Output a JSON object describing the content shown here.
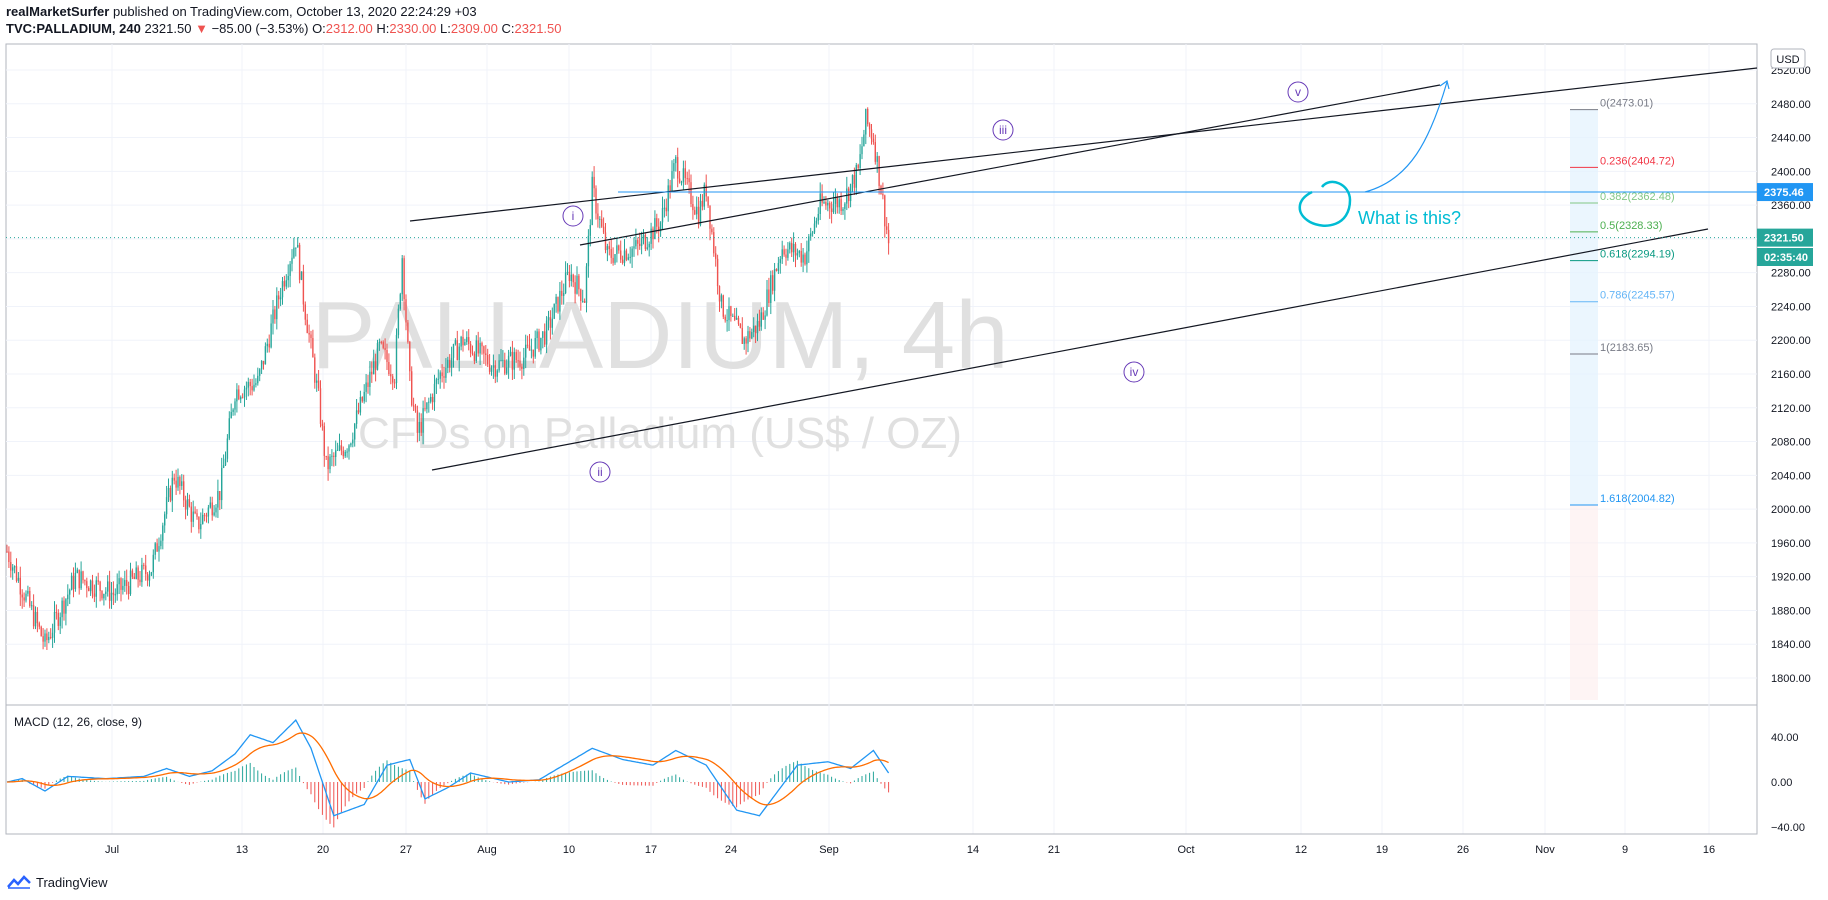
{
  "header": {
    "author": "realMarketSurfer",
    "published": "published on TradingView.com, October 13, 2020 22:24:29 +03",
    "symbol": "TVC:PALLADIUM, 240",
    "last": "2321.50",
    "arrow": "▼",
    "change": "−85.00 (−3.53%)",
    "o_label": "O:",
    "o_val": "2312.00",
    "h_label": "H:",
    "h_val": "2330.00",
    "l_label": "L:",
    "l_val": "2309.00",
    "c_label": "C:",
    "c_val": "2321.50"
  },
  "currency_button": "USD",
  "watermark": {
    "line1": "PALLADIUM, 4h",
    "line2": "CFDs on Palladium (US$ / OZ)"
  },
  "annotation": "What is this?",
  "wave_labels": [
    "i",
    "ii",
    "iii",
    "iv",
    "v"
  ],
  "macd": {
    "title": "MACD (12, 26, close, 9)"
  },
  "footer": {
    "brand": "TradingView"
  },
  "colors": {
    "up": "#26a69a",
    "down": "#ef5350",
    "macd_line": "#2196f3",
    "signal_line": "#ff6d00",
    "annotation": "#00bcd4",
    "wave": "#673ab7"
  },
  "chart_data": [
    {
      "type": "candlestick",
      "ylim": [
        1760,
        2530
      ],
      "y_ticks": [
        "1800.00",
        "1840.00",
        "1880.00",
        "1920.00",
        "1960.00",
        "2000.00",
        "2040.00",
        "2080.00",
        "2120.00",
        "2160.00",
        "2200.00",
        "2240.00",
        "2280.00",
        "2320.00",
        "2360.00",
        "2400.00",
        "2440.00",
        "2480.00",
        "2520.00"
      ],
      "x_ticks": [
        "Jul",
        "13",
        "20",
        "27",
        "Aug",
        "10",
        "17",
        "24",
        "Sep",
        "14",
        "21",
        "Oct",
        "12",
        "19",
        "26",
        "Nov",
        "9",
        "16"
      ],
      "price_labels": [
        {
          "text": "2375.46",
          "price": 2375.46,
          "color": "#2196f3"
        },
        {
          "text": "2321.50",
          "price": 2321.5,
          "color": "#26a69a"
        },
        {
          "text": "02:35:40",
          "price": 2298,
          "color": "#26a69a"
        }
      ],
      "fib_levels": [
        {
          "label": "0(2473.01)",
          "price": 2473.01,
          "color": "#787b86"
        },
        {
          "label": "0.236(2404.72)",
          "price": 2404.72,
          "color": "#f23645"
        },
        {
          "label": "0.382(2362.48)",
          "price": 2362.48,
          "color": "#81c784"
        },
        {
          "label": "0.5(2328.33)",
          "price": 2328.33,
          "color": "#4caf50"
        },
        {
          "label": "0.618(2294.19)",
          "price": 2294.19,
          "color": "#089981"
        },
        {
          "label": "0.786(2245.57)",
          "price": 2245.57,
          "color": "#64b5f6"
        },
        {
          "label": "1(2183.65)",
          "price": 2183.65,
          "color": "#787b86"
        },
        {
          "label": "1.618(2004.82)",
          "price": 2004.82,
          "color": "#2196f3"
        }
      ],
      "keypoints": [
        {
          "day": 0,
          "price": 1950
        },
        {
          "day": 5,
          "price": 1840
        },
        {
          "day": 9,
          "price": 1920
        },
        {
          "day": 14,
          "price": 1900
        },
        {
          "day": 19,
          "price": 1930
        },
        {
          "day": 22,
          "price": 2040
        },
        {
          "day": 25,
          "price": 1980
        },
        {
          "day": 28,
          "price": 2020
        },
        {
          "day": 30,
          "price": 2140
        },
        {
          "day": 33,
          "price": 2150
        },
        {
          "day": 36,
          "price": 2260
        },
        {
          "day": 38,
          "price": 2320
        },
        {
          "day": 39,
          "price": 2250
        },
        {
          "day": 41,
          "price": 2130
        },
        {
          "day": 42,
          "price": 2050
        },
        {
          "day": 45,
          "price": 2080
        },
        {
          "day": 49,
          "price": 2190
        },
        {
          "day": 51,
          "price": 2160
        },
        {
          "day": 52,
          "price": 2300
        },
        {
          "day": 53,
          "price": 2150
        },
        {
          "day": 54,
          "price": 2090
        },
        {
          "day": 57,
          "price": 2160
        },
        {
          "day": 60,
          "price": 2200
        },
        {
          "day": 64,
          "price": 2170
        },
        {
          "day": 68,
          "price": 2180
        },
        {
          "day": 71,
          "price": 2210
        },
        {
          "day": 74,
          "price": 2280
        },
        {
          "day": 76,
          "price": 2250
        },
        {
          "day": 77,
          "price": 2380
        },
        {
          "day": 79,
          "price": 2300
        },
        {
          "day": 83,
          "price": 2310
        },
        {
          "day": 86,
          "price": 2340
        },
        {
          "day": 88,
          "price": 2410
        },
        {
          "day": 91,
          "price": 2350
        },
        {
          "day": 92,
          "price": 2380
        },
        {
          "day": 94,
          "price": 2240
        },
        {
          "day": 97,
          "price": 2200
        },
        {
          "day": 99,
          "price": 2220
        },
        {
          "day": 102,
          "price": 2310
        },
        {
          "day": 105,
          "price": 2300
        },
        {
          "day": 107,
          "price": 2360
        },
        {
          "day": 110,
          "price": 2365
        },
        {
          "day": 112,
          "price": 2400
        },
        {
          "day": 113,
          "price": 2460
        },
        {
          "day": 114,
          "price": 2440
        },
        {
          "day": 115,
          "price": 2380
        },
        {
          "day": 116,
          "price": 2315
        }
      ]
    },
    {
      "type": "macd",
      "title": "MACD (12, 26, close, 9)",
      "ylim": [
        -42,
        55
      ],
      "y_ticks": [
        "40.00",
        "0.00",
        "−40.00"
      ],
      "macd_points": [
        {
          "day": 0,
          "v": 0
        },
        {
          "day": 2,
          "v": 3
        },
        {
          "day": 5,
          "v": -8
        },
        {
          "day": 8,
          "v": 5
        },
        {
          "day": 13,
          "v": 3
        },
        {
          "day": 18,
          "v": 5
        },
        {
          "day": 21,
          "v": 12
        },
        {
          "day": 24,
          "v": 5
        },
        {
          "day": 27,
          "v": 10
        },
        {
          "day": 30,
          "v": 25
        },
        {
          "day": 32,
          "v": 42
        },
        {
          "day": 35,
          "v": 35
        },
        {
          "day": 38,
          "v": 55
        },
        {
          "day": 40,
          "v": 30
        },
        {
          "day": 43,
          "v": -30
        },
        {
          "day": 47,
          "v": -20
        },
        {
          "day": 50,
          "v": 15
        },
        {
          "day": 53,
          "v": 20
        },
        {
          "day": 55,
          "v": -15
        },
        {
          "day": 58,
          "v": -5
        },
        {
          "day": 61,
          "v": 8
        },
        {
          "day": 66,
          "v": 0
        },
        {
          "day": 70,
          "v": 2
        },
        {
          "day": 74,
          "v": 18
        },
        {
          "day": 77,
          "v": 30
        },
        {
          "day": 81,
          "v": 20
        },
        {
          "day": 85,
          "v": 15
        },
        {
          "day": 88,
          "v": 28
        },
        {
          "day": 92,
          "v": 15
        },
        {
          "day": 96,
          "v": -25
        },
        {
          "day": 99,
          "v": -30
        },
        {
          "day": 104,
          "v": 15
        },
        {
          "day": 108,
          "v": 18
        },
        {
          "day": 111,
          "v": 12
        },
        {
          "day": 114,
          "v": 28
        },
        {
          "day": 116,
          "v": 8
        }
      ]
    }
  ]
}
